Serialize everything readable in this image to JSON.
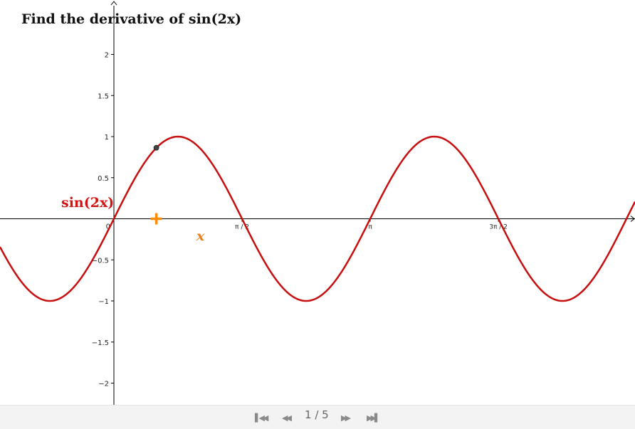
{
  "title_prefix": "Find the derivative of",
  "title_math": "sin(2x)",
  "function_label": "sin(2x)",
  "point_label": "x",
  "pager": {
    "current": "1",
    "total": "5",
    "separator": " / "
  },
  "nav_icons": [
    "skip-first-icon",
    "step-back-icon",
    "step-forward-icon",
    "skip-last-icon"
  ],
  "colors": {
    "curve": "#c80f0f",
    "point": "#444444",
    "marker": "#ff8c0a",
    "axis": "#000000"
  },
  "chart_data": {
    "type": "line",
    "title": "Find the derivative of sin(2x)",
    "function": "sin(2x)",
    "series": [
      {
        "name": "sin(2x)",
        "expression": "sin(2*x)"
      }
    ],
    "xlim": [
      -0.89,
      3.98
    ],
    "ylim": [
      -2.25,
      2.26
    ],
    "x_ticks": [
      {
        "value": 1.5708,
        "label": "π / 2"
      },
      {
        "value": 3.1416,
        "label": "π"
      },
      {
        "value": 4.7124,
        "label": "3π / 2"
      }
    ],
    "y_ticks": [
      {
        "value": 2,
        "label": "2"
      },
      {
        "value": 1.5,
        "label": "1.5"
      },
      {
        "value": 1,
        "label": "1"
      },
      {
        "value": 0.5,
        "label": "0.5"
      },
      {
        "value": -0.5,
        "label": "−0.5"
      },
      {
        "value": -1,
        "label": "−1"
      },
      {
        "value": -1.5,
        "label": "−1.5"
      },
      {
        "value": -2,
        "label": "−2"
      }
    ],
    "origin_label": "0",
    "point": {
      "x": 0.52,
      "y": 0.864
    },
    "marker_x": 0.52,
    "grid": false
  }
}
